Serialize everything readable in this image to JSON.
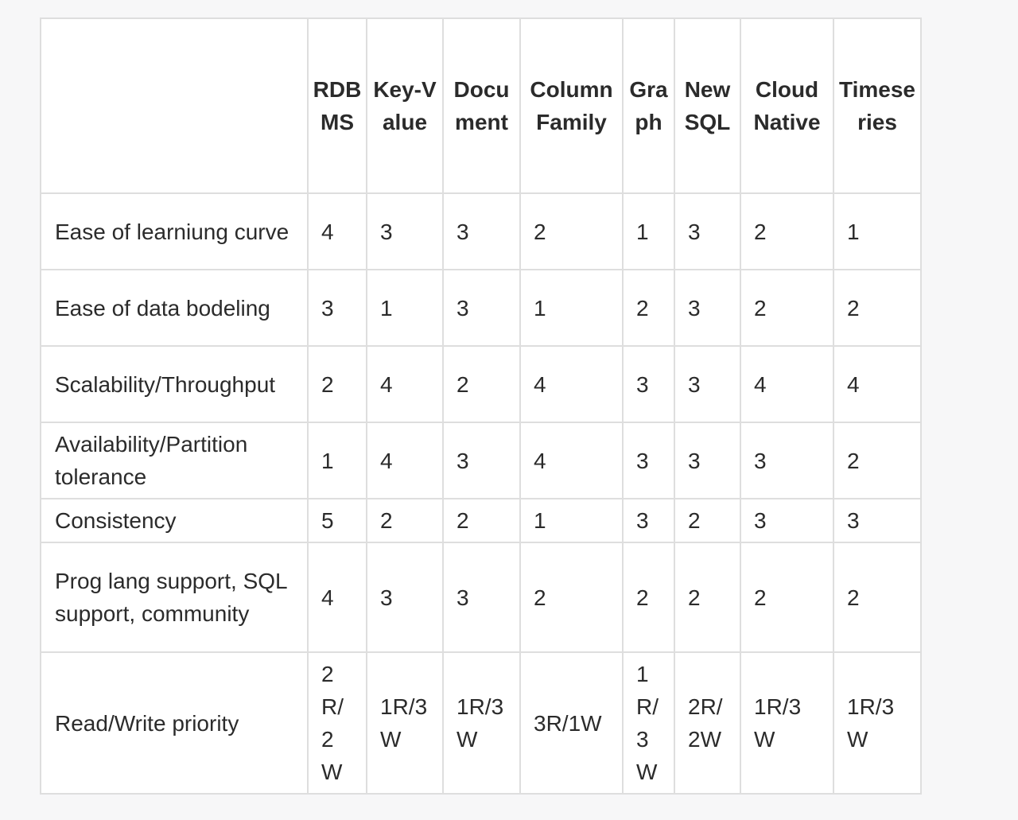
{
  "columns": [
    {
      "key": "rdbms",
      "label": "RDBMS"
    },
    {
      "key": "key_value",
      "label": "Key-Value"
    },
    {
      "key": "document",
      "label": "Document"
    },
    {
      "key": "column_family",
      "label": "Column Family"
    },
    {
      "key": "graph",
      "label": "Graph"
    },
    {
      "key": "newsql",
      "label": "NewSQL"
    },
    {
      "key": "cloud_native",
      "label": "Cloud Native"
    },
    {
      "key": "timeseries",
      "label": "Timeseries"
    }
  ],
  "rows": [
    {
      "label": "Ease of learniung curve",
      "values": [
        "4",
        "3",
        "3",
        "2",
        "1",
        "3",
        "2",
        "1"
      ]
    },
    {
      "label": "Ease of data bodeling",
      "values": [
        "3",
        "1",
        "3",
        "1",
        "2",
        "3",
        "2",
        "2"
      ]
    },
    {
      "label": "Scalability/Throughput",
      "values": [
        "2",
        "4",
        "2",
        "4",
        "3",
        "3",
        "4",
        "4"
      ]
    },
    {
      "label": "Availability/Partition tolerance",
      "values": [
        "1",
        "4",
        "3",
        "4",
        "3",
        "3",
        "3",
        "2"
      ]
    },
    {
      "label": "Consistency",
      "values": [
        "5",
        "2",
        "2",
        "1",
        "3",
        "2",
        "3",
        "3"
      ]
    },
    {
      "label": "Prog lang support, SQL support, community",
      "values": [
        "4",
        "3",
        "3",
        "2",
        "2",
        "2",
        "2",
        "2"
      ]
    },
    {
      "label": "Read/Write priority",
      "values": [
        "2R/2W",
        "1R/3W",
        "1R/3W",
        "3R/1W",
        "1R/3W",
        "2R/2W",
        "1R/3W",
        "1R/3W"
      ]
    }
  ]
}
